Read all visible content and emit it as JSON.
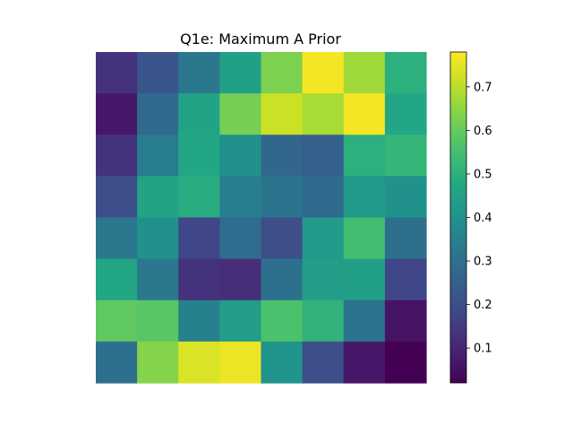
{
  "chart_data": {
    "type": "heatmap",
    "title": "Q1e: Maximum A Prior",
    "xlabel": "",
    "ylabel": "",
    "axes_visible": false,
    "colormap": "viridis",
    "colorbar": {
      "vmin": 0.02,
      "vmax": 0.78,
      "ticks": [
        0.1,
        0.2,
        0.3,
        0.4,
        0.5,
        0.6,
        0.7
      ],
      "tick_labels": [
        "0.1",
        "0.2",
        "0.3",
        "0.4",
        "0.5",
        "0.6",
        "0.7"
      ]
    },
    "rows": 8,
    "cols": 8,
    "values": [
      [
        0.13,
        0.22,
        0.32,
        0.45,
        0.63,
        0.77,
        0.67,
        0.5
      ],
      [
        0.07,
        0.28,
        0.46,
        0.62,
        0.72,
        0.68,
        0.77,
        0.47
      ],
      [
        0.13,
        0.34,
        0.47,
        0.4,
        0.27,
        0.25,
        0.5,
        0.52
      ],
      [
        0.2,
        0.46,
        0.49,
        0.34,
        0.31,
        0.28,
        0.43,
        0.4
      ],
      [
        0.32,
        0.4,
        0.18,
        0.29,
        0.2,
        0.43,
        0.55,
        0.3
      ],
      [
        0.47,
        0.32,
        0.13,
        0.12,
        0.3,
        0.44,
        0.45,
        0.18
      ],
      [
        0.59,
        0.58,
        0.35,
        0.44,
        0.56,
        0.51,
        0.31,
        0.06
      ],
      [
        0.3,
        0.64,
        0.74,
        0.76,
        0.41,
        0.2,
        0.07,
        0.02
      ]
    ]
  }
}
